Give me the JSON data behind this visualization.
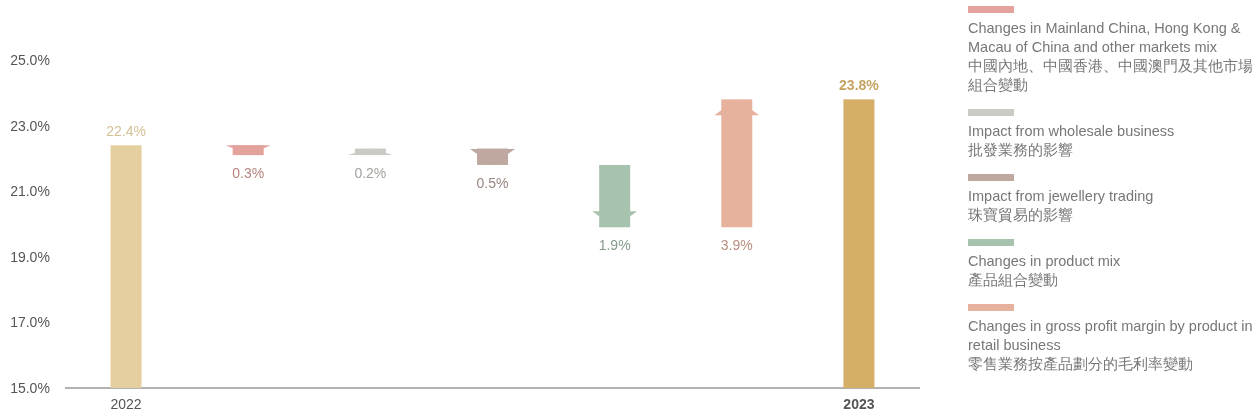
{
  "chart_data": {
    "type": "bar",
    "categories": [
      "2022",
      null,
      null,
      null,
      null,
      null,
      "2023"
    ],
    "ylim": [
      15,
      25
    ],
    "yticks": [
      {
        "value": 15,
        "label": "15.0%"
      },
      {
        "value": 17,
        "label": "17.0%"
      },
      {
        "value": 19,
        "label": "19.0%"
      },
      {
        "value": 21,
        "label": "21.0%"
      },
      {
        "value": 23,
        "label": "23.0%"
      },
      {
        "value": 25,
        "label": "25.0%"
      }
    ],
    "grid": false,
    "legend": "right",
    "series": [
      {
        "color": "#e5cfa0",
        "values": [
          22.4,
          null,
          null,
          null,
          null,
          null,
          null
        ],
        "value_labels": [
          "22.4%",
          null,
          null,
          null,
          null,
          null,
          null
        ]
      },
      {
        "name": "Changes in Mainland China, Hong Kong & Macau of China and other markets mix\n中國內地、中國香港、中國澳門及其他市場組合變動",
        "color": "#e3a29b",
        "values": [
          null,
          -0.3,
          null,
          null,
          null,
          null,
          null
        ],
        "base": [
          null,
          22.4,
          null,
          null,
          null,
          null,
          null
        ],
        "value_labels": [
          null,
          "0.3%",
          null,
          null,
          null,
          null,
          null
        ]
      },
      {
        "name": "Impact from wholesale business\n批發業務的影響",
        "color": "#cbcac5",
        "values": [
          null,
          null,
          0.2,
          null,
          null,
          null,
          null
        ],
        "base": [
          null,
          null,
          22.1,
          null,
          null,
          null,
          null
        ],
        "value_labels": [
          null,
          null,
          "0.2%",
          null,
          null,
          null,
          null
        ]
      },
      {
        "name": "Impact from jewellery trading\n珠寶貿易的影響",
        "color": "#bea8a0",
        "values": [
          null,
          null,
          null,
          -0.5,
          null,
          null,
          null
        ],
        "base": [
          null,
          null,
          null,
          22.3,
          null,
          null,
          null
        ],
        "value_labels": [
          null,
          null,
          null,
          "0.5%",
          null,
          null,
          null
        ]
      },
      {
        "name": "Changes in product mix\n產品組合變動",
        "color": "#a7c3ae",
        "values": [
          null,
          null,
          null,
          null,
          -1.9,
          null,
          null
        ],
        "base": [
          null,
          null,
          null,
          null,
          21.8,
          null,
          null
        ],
        "value_labels": [
          null,
          null,
          null,
          null,
          "1.9%",
          null,
          null
        ]
      },
      {
        "name": "Changes in gross profit margin by product in retail business\n零售業務按產品劃分的毛利率變動",
        "color": "#e6b29e",
        "values": [
          null,
          null,
          null,
          null,
          null,
          3.9,
          null
        ],
        "base": [
          null,
          null,
          null,
          null,
          null,
          19.9,
          null
        ],
        "value_labels": [
          null,
          null,
          null,
          null,
          null,
          "3.9%",
          null
        ]
      },
      {
        "color": "#d5af68",
        "values": [
          null,
          null,
          null,
          null,
          null,
          null,
          23.8
        ],
        "value_labels": [
          null,
          null,
          null,
          null,
          null,
          null,
          "23.8%"
        ]
      }
    ]
  }
}
